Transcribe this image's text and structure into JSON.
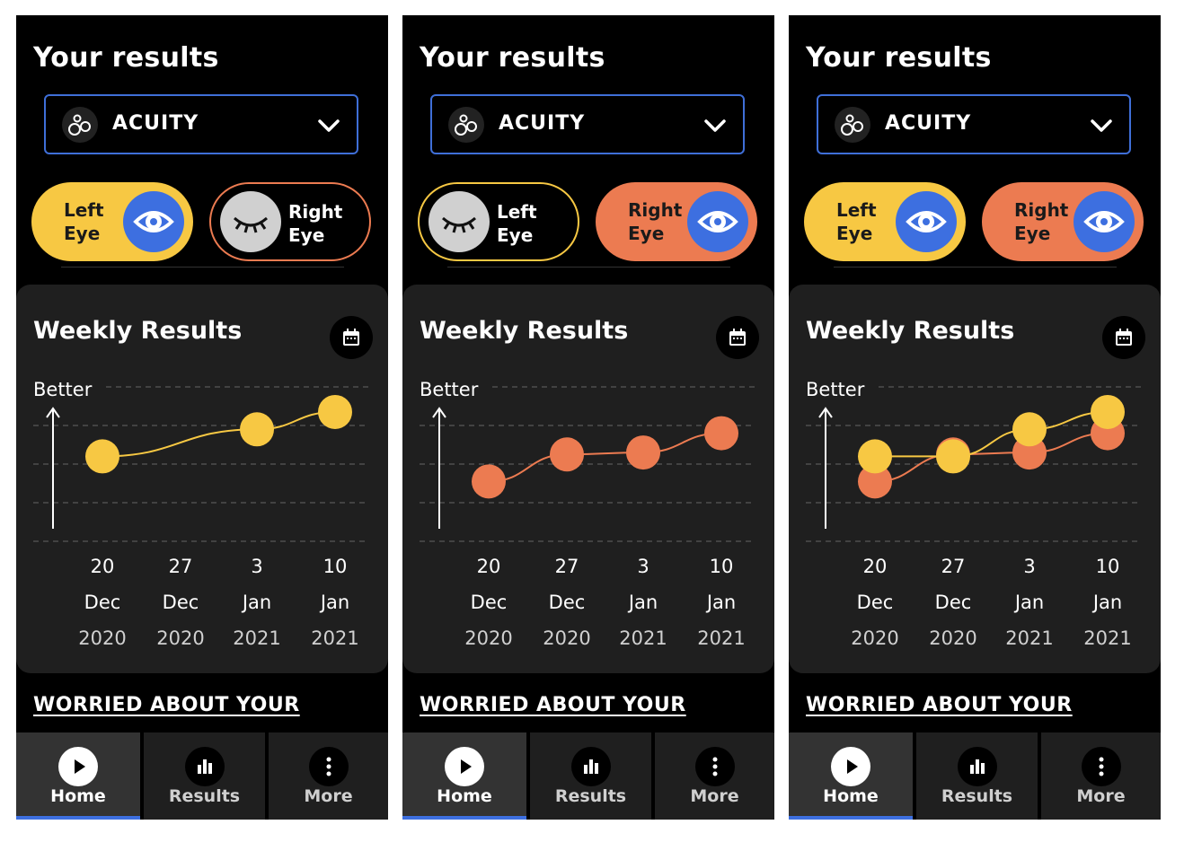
{
  "screens": [
    {
      "title": "Your results",
      "selector": {
        "label": "ACUITY"
      },
      "left_eye": {
        "label_line1": "Left",
        "label_line2": "Eye",
        "state": "open"
      },
      "right_eye": {
        "label_line1": "Right",
        "label_line2": "Eye",
        "state": "closed"
      },
      "card": {
        "title": "Weekly Results",
        "axis_label": "Better"
      },
      "x_labels": [
        {
          "day": "20",
          "month": "Dec",
          "year": "2020"
        },
        {
          "day": "27",
          "month": "Dec",
          "year": "2020"
        },
        {
          "day": "3",
          "month": "Jan",
          "year": "2021"
        },
        {
          "day": "10",
          "month": "Jan",
          "year": "2021"
        }
      ],
      "link": "WORRIED ABOUT YOUR",
      "tabs": [
        {
          "label": "Home"
        },
        {
          "label": "Results"
        },
        {
          "label": "More"
        }
      ]
    },
    {
      "title": "Your results",
      "selector": {
        "label": "ACUITY"
      },
      "left_eye": {
        "label_line1": "Left",
        "label_line2": "Eye",
        "state": "closed"
      },
      "right_eye": {
        "label_line1": "Right",
        "label_line2": "Eye",
        "state": "open"
      },
      "card": {
        "title": "Weekly Results",
        "axis_label": "Better"
      },
      "x_labels": [
        {
          "day": "20",
          "month": "Dec",
          "year": "2020"
        },
        {
          "day": "27",
          "month": "Dec",
          "year": "2020"
        },
        {
          "day": "3",
          "month": "Jan",
          "year": "2021"
        },
        {
          "day": "10",
          "month": "Jan",
          "year": "2021"
        }
      ],
      "link": "WORRIED ABOUT YOUR",
      "tabs": [
        {
          "label": "Home"
        },
        {
          "label": "Results"
        },
        {
          "label": "More"
        }
      ]
    },
    {
      "title": "Your results",
      "selector": {
        "label": "ACUITY"
      },
      "left_eye": {
        "label_line1": "Left",
        "label_line2": "Eye",
        "state": "open"
      },
      "right_eye": {
        "label_line1": "Right",
        "label_line2": "Eye",
        "state": "open"
      },
      "card": {
        "title": "Weekly Results",
        "axis_label": "Better"
      },
      "x_labels": [
        {
          "day": "20",
          "month": "Dec",
          "year": "2020"
        },
        {
          "day": "27",
          "month": "Dec",
          "year": "2020"
        },
        {
          "day": "3",
          "month": "Jan",
          "year": "2021"
        },
        {
          "day": "10",
          "month": "Jan",
          "year": "2021"
        }
      ],
      "link": "WORRIED ABOUT YOUR",
      "tabs": [
        {
          "label": "Home"
        },
        {
          "label": "Results"
        },
        {
          "label": "More"
        }
      ]
    }
  ],
  "chart_data": [
    {
      "type": "line",
      "x": [
        "20 Dec 2020",
        "27 Dec 2020",
        "3 Jan 2021",
        "10 Jan 2021"
      ],
      "ylim": [
        0,
        4
      ],
      "series": [
        {
          "values": [
            2.2,
            null,
            2.9,
            3.35
          ],
          "color": "#f7c843"
        }
      ]
    },
    {
      "type": "line",
      "x": [
        "20 Dec 2020",
        "27 Dec 2020",
        "3 Jan 2021",
        "10 Jan 2021"
      ],
      "ylim": [
        0,
        4
      ],
      "series": [
        {
          "values": [
            1.55,
            2.25,
            2.3,
            2.8
          ],
          "color": "#ec7b51"
        }
      ]
    },
    {
      "type": "line",
      "x": [
        "20 Dec 2020",
        "27 Dec 2020",
        "3 Jan 2021",
        "10 Jan 2021"
      ],
      "ylim": [
        0,
        4
      ],
      "series": [
        {
          "values": [
            1.55,
            2.25,
            2.3,
            2.8
          ],
          "color": "#ec7b51"
        },
        {
          "values": [
            2.2,
            2.2,
            2.9,
            3.35
          ],
          "color": "#f7c843"
        }
      ]
    }
  ],
  "colors": {
    "yellow": "#f7c843",
    "orange": "#ec7b51",
    "blue": "#3d6fe0",
    "card": "#1f1f1f"
  },
  "icons": {
    "selector": "circles-icon",
    "dropdown": "chevron-down-icon",
    "calendar": "calendar-icon",
    "eye_open": "eye-icon",
    "eye_closed": "eye-closed-icon",
    "home": "play-icon",
    "results": "bar-chart-icon",
    "more": "more-vertical-icon"
  }
}
